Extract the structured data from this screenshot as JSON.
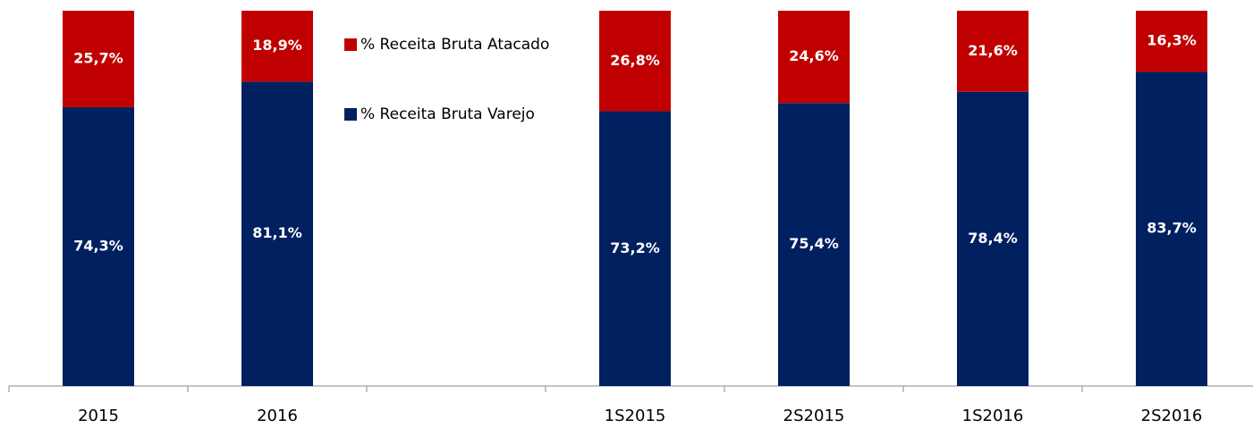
{
  "chart_data": {
    "type": "stacked_bar",
    "categories": [
      "2015",
      "2016",
      null,
      "1S2015",
      "2S2015",
      "1S2016",
      "2S2016"
    ],
    "series": [
      {
        "name": "% Receita Bruta Varejo",
        "color": "#002060",
        "values": [
          74.3,
          81.1,
          null,
          73.2,
          75.4,
          78.4,
          83.7
        ],
        "value_labels": [
          "74,3%",
          "81,1%",
          null,
          "73,2%",
          "75,4%",
          "78,4%",
          "83,7%"
        ]
      },
      {
        "name": "% Receita Bruta Atacado",
        "color": "#c00000",
        "values": [
          25.7,
          18.9,
          null,
          26.8,
          24.6,
          21.6,
          16.3
        ],
        "value_labels": [
          "25,7%",
          "18,9%",
          null,
          "26,8%",
          "24,6%",
          "21,6%",
          "16,3%"
        ]
      }
    ],
    "ylim": [
      0,
      100
    ]
  }
}
